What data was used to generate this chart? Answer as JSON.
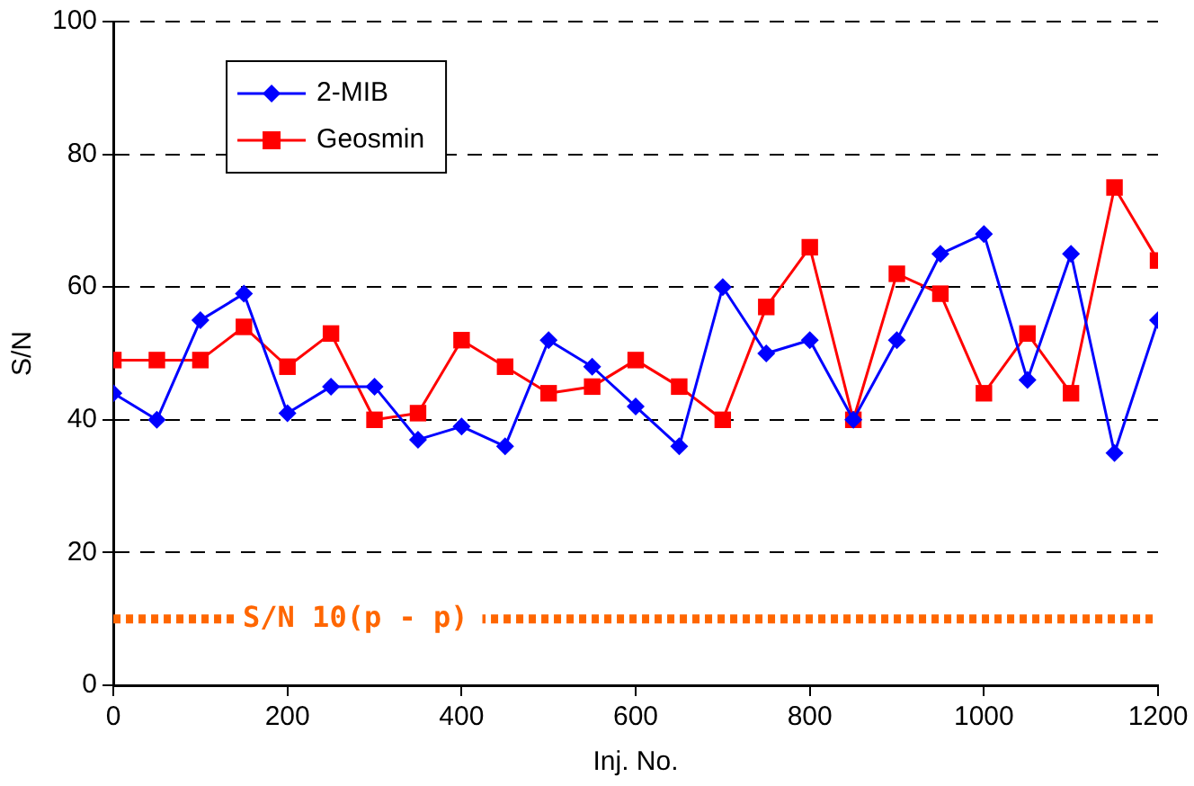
{
  "chart_data": {
    "type": "line",
    "xlabel": "Inj. No.",
    "ylabel": "S/N",
    "x": [
      0,
      50,
      100,
      150,
      200,
      250,
      300,
      350,
      400,
      450,
      500,
      550,
      600,
      650,
      700,
      750,
      800,
      850,
      900,
      950,
      1000,
      1050,
      1100,
      1150,
      1200
    ],
    "series": [
      {
        "name": "2-MIB",
        "color": "#0000ff",
        "marker": "diamond",
        "values": [
          44,
          40,
          55,
          59,
          41,
          45,
          45,
          37,
          39,
          36,
          52,
          48,
          42,
          36,
          60,
          50,
          52,
          40,
          52,
          65,
          68,
          46,
          65,
          35,
          55
        ]
      },
      {
        "name": "Geosmin",
        "color": "#ff0000",
        "marker": "square",
        "values": [
          49,
          49,
          49,
          54,
          48,
          53,
          40,
          41,
          52,
          48,
          44,
          45,
          49,
          45,
          40,
          57,
          66,
          40,
          62,
          59,
          44,
          53,
          44,
          75,
          64
        ]
      }
    ],
    "xlim": [
      0,
      1200
    ],
    "xticks": [
      0,
      200,
      400,
      600,
      800,
      1000,
      1200
    ],
    "ylim": [
      0,
      100
    ],
    "yticks": [
      0,
      20,
      40,
      60,
      80,
      100
    ],
    "grid": "y",
    "legend": "top left",
    "line_style": "solid",
    "ref_lines": [
      {
        "axis": "y",
        "value": 10,
        "label": "S/N 10(p - p)",
        "color": "#ff6600",
        "line_style": "dotted"
      }
    ]
  }
}
